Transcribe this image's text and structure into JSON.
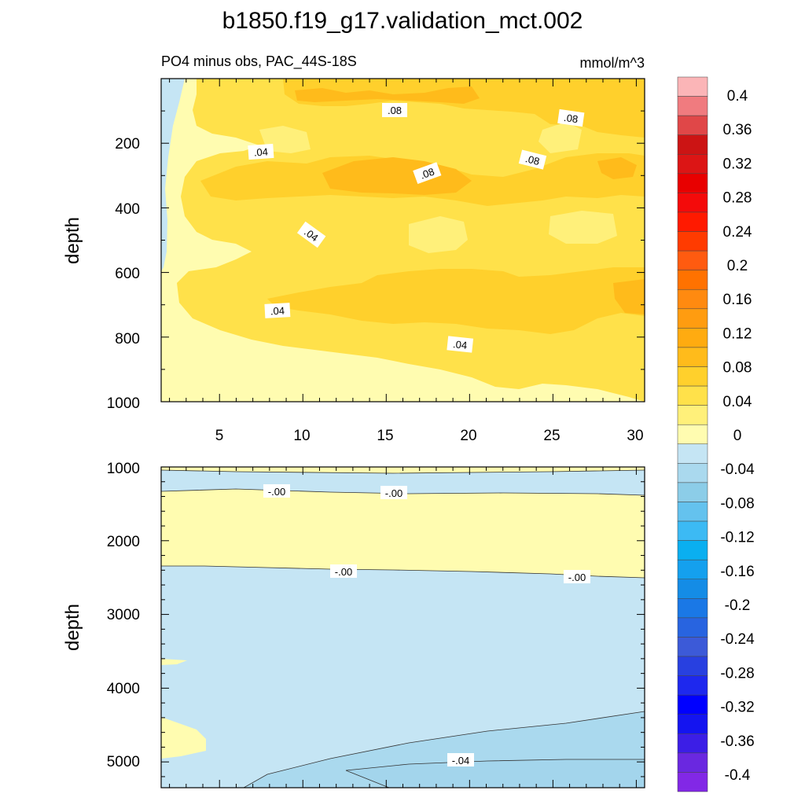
{
  "chart_data": {
    "type": "contour",
    "title": "b1850.f19_g17.validation_mct.002",
    "subtitle": "PO4 minus obs, PAC_44S-18S",
    "units": "mmol/m^3",
    "xticks": [
      "5",
      "10",
      "15",
      "20",
      "25",
      "30"
    ],
    "xlim": [
      1.5,
      30.5
    ],
    "colorbar": {
      "labels": [
        "0.4",
        "0.36",
        "0.32",
        "0.28",
        "0.24",
        "0.2",
        "0.16",
        "0.12",
        "0.08",
        "0.04",
        "0",
        "-0.04",
        "-0.08",
        "-0.12",
        "-0.16",
        "-0.2",
        "-0.24",
        "-0.28",
        "-0.32",
        "-0.36",
        "-0.4"
      ],
      "colors": [
        "#fbb5b7",
        "#f07b7f",
        "#e04748",
        "#cc1414",
        "#dc1515",
        "#e80000",
        "#f40a0a",
        "#ff1a00",
        "#ff3b00",
        "#ff5b10",
        "#ff7200",
        "#ff8a10",
        "#ff9c10",
        "#ffab10",
        "#ffbb1b",
        "#ffd02c",
        "#ffe14a",
        "#fff07a",
        "#fffcb0",
        "#c5e5f4",
        "#aad9ee",
        "#8ccde8",
        "#64c2ee",
        "#3cbaf4",
        "#0aaff0",
        "#14a0ee",
        "#148ce6",
        "#1a78e6",
        "#2864e0",
        "#3c5ad8",
        "#2840e0",
        "#1e28ee",
        "#0000ff",
        "#1414f0",
        "#3c1ee6",
        "#6a28e0",
        "#8228e6"
      ],
      "display_colors_top_to_bottom": [
        "#fbb5b7",
        "#f07b7f",
        "#e04748",
        "#cc1414",
        "#dc1515",
        "#e80000",
        "#f40a0a",
        "#ff1a00",
        "#ff3b00",
        "#ff5b10",
        "#ff7200",
        "#ff8a10",
        "#ff9c10",
        "#ffab10",
        "#ffbb1b",
        "#ffd02c",
        "#ffe14a",
        "#fff07a",
        "#fffcb0",
        "#c5e5f4",
        "#aad9ee",
        "#8ccde8",
        "#64c2ee",
        "#3cbaf4",
        "#0aaff0",
        "#14a0ee",
        "#148ce6",
        "#1a78e6",
        "#2864e0",
        "#3c5ad8",
        "#2840e0",
        "#1e28ee",
        "#0000ff",
        "#1414f0",
        "#3c1ee6",
        "#6a28e0",
        "#8228e6"
      ]
    },
    "panels": [
      {
        "ylabel": "depth",
        "ylim": [
          1000,
          0
        ],
        "yticks": [
          "200",
          "400",
          "600",
          "800",
          "1000"
        ],
        "contour_labels": [
          ".08",
          ".08",
          ".04",
          ".08",
          ".08",
          ".04",
          ".04",
          ".04"
        ],
        "dominant_values": "0 to 0.12 (positive, yellow-orange)"
      },
      {
        "ylabel": "depth",
        "ylim": [
          1000,
          5350
        ],
        "yticks": [
          "1000",
          "2000",
          "3000",
          "4000",
          "5000"
        ],
        "contour_labels": [
          "-.00",
          "-.00",
          "-.00",
          "-.00",
          "-.04"
        ],
        "dominant_values": "-0.04 to 0.04 (mostly slightly negative, light blue)"
      }
    ]
  }
}
